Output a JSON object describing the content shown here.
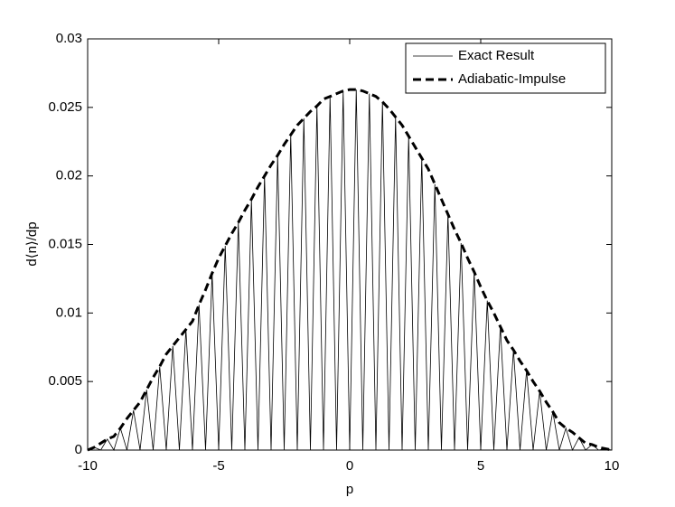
{
  "chart_data": {
    "type": "line",
    "xlabel": "p",
    "ylabel": "d⟨n⟩/dp",
    "xlim": [
      -10,
      10
    ],
    "xticks": [
      -10,
      -5,
      0,
      5,
      10
    ],
    "ylim": [
      0,
      0.03
    ],
    "yticks": [
      0,
      0.005,
      0.01,
      0.015,
      0.02,
      0.025,
      0.03
    ],
    "legend": "upper right",
    "x": [
      -10,
      -9.75,
      -9.5,
      -9.25,
      -9,
      -8.75,
      -8.5,
      -8.25,
      -8,
      -7.75,
      -7.5,
      -7.25,
      -7,
      -6.75,
      -6.5,
      -6.25,
      -6,
      -5.75,
      -5.5,
      -5.25,
      -5,
      -4.75,
      -4.5,
      -4.25,
      -4,
      -3.75,
      -3.5,
      -3.25,
      -3,
      -2.75,
      -2.5,
      -2.25,
      -2,
      -1.75,
      -1.5,
      -1.25,
      -1,
      -0.75,
      -0.5,
      -0.25,
      0,
      0.25,
      0.5,
      0.75,
      1,
      1.25,
      1.5,
      1.75,
      2,
      2.25,
      2.5,
      2.75,
      3,
      3.25,
      3.5,
      3.75,
      4,
      4.25,
      4.5,
      4.75,
      5,
      5.25,
      5.5,
      5.75,
      6,
      6.25,
      6.5,
      6.75,
      7,
      7.25,
      7.5,
      7.75,
      8,
      8.25,
      8.5,
      8.75,
      9,
      9.25,
      9.5,
      9.75,
      10
    ],
    "series": [
      {
        "name": "Exact Result",
        "color": "#000000",
        "style": "solid",
        "values": [
          0,
          0.0002,
          0,
          0.0008,
          0,
          0.0016,
          0,
          0.0029,
          0,
          0.0044,
          0,
          0.0061,
          0,
          0.0076,
          0,
          0.0088,
          0,
          0.0106,
          0,
          0.0129,
          0,
          0.0149,
          0,
          0.0166,
          0,
          0.0183,
          0,
          0.02,
          0,
          0.0215,
          0,
          0.023,
          0,
          0.0242,
          0,
          0.0251,
          0,
          0.0258,
          0,
          0.0262,
          0,
          0.0263,
          0,
          0.026,
          0,
          0.0254,
          0,
          0.0243,
          0,
          0.0229,
          0,
          0.0213,
          0,
          0.0194,
          0,
          0.0172,
          0,
          0.0151,
          0,
          0.013,
          0,
          0.0109,
          0,
          0.009,
          0,
          0.0073,
          0,
          0.0058,
          0,
          0.0043,
          0,
          0.0028,
          0,
          0.0016,
          0,
          0.0009,
          0,
          0.0004,
          0,
          0.0001,
          0
        ]
      },
      {
        "name": "Adiabatic-Impulse",
        "color": "#000000",
        "style": "dashed",
        "values": [
          0,
          0.0002,
          0.0005,
          0.0008,
          0.001,
          0.0016,
          0.0023,
          0.0029,
          0.0035,
          0.0044,
          0.0053,
          0.0061,
          0.007,
          0.0076,
          0.0082,
          0.0088,
          0.0094,
          0.0106,
          0.0117,
          0.0129,
          0.014,
          0.0149,
          0.0158,
          0.0166,
          0.0175,
          0.0183,
          0.0192,
          0.02,
          0.0208,
          0.0215,
          0.0223,
          0.023,
          0.0237,
          0.0242,
          0.0247,
          0.0251,
          0.0256,
          0.0258,
          0.026,
          0.0262,
          0.0263,
          0.0263,
          0.0262,
          0.026,
          0.0258,
          0.0254,
          0.0249,
          0.0243,
          0.0237,
          0.0229,
          0.0221,
          0.0213,
          0.0205,
          0.0194,
          0.0183,
          0.0172,
          0.0161,
          0.0151,
          0.014,
          0.013,
          0.0119,
          0.0109,
          0.01,
          0.009,
          0.008,
          0.0073,
          0.0065,
          0.0058,
          0.005,
          0.0043,
          0.0035,
          0.0028,
          0.002,
          0.0016,
          0.0013,
          0.0009,
          0.0005,
          0.0004,
          0.0002,
          0.0001,
          0
        ]
      }
    ]
  }
}
